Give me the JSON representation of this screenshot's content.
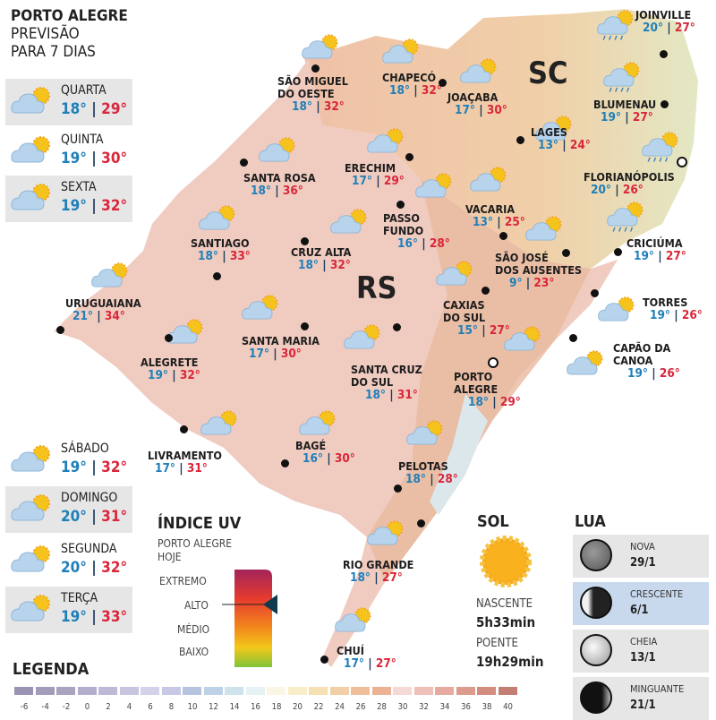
{
  "header": {
    "city": "PORTO ALEGRE",
    "line2": "PREVISÃO",
    "line3": "PARA 7 DIAS"
  },
  "days": [
    {
      "name": "QUARTA",
      "low": "18°",
      "high": "29°",
      "icon": "cloud-sun"
    },
    {
      "name": "QUINTA",
      "low": "19°",
      "high": "30°",
      "icon": "cloud-sun"
    },
    {
      "name": "SEXTA",
      "low": "19°",
      "high": "32°",
      "icon": "cloud-sun"
    },
    {
      "name": "SÁBADO",
      "low": "19°",
      "high": "32°",
      "icon": "cloud-sun"
    },
    {
      "name": "DOMINGO",
      "low": "20°",
      "high": "31°",
      "icon": "cloud-sun"
    },
    {
      "name": "SEGUNDA",
      "low": "20°",
      "high": "32°",
      "icon": "cloud-sun"
    },
    {
      "name": "TERÇA",
      "low": "19°",
      "high": "33°",
      "icon": "cloud-sun"
    }
  ],
  "regions": {
    "sc": "SC",
    "rs": "RS"
  },
  "cities": [
    {
      "name": "SÃO MIGUEL\nDO OESTE",
      "low": "18°",
      "high": "32°",
      "icon": "cloud-sun"
    },
    {
      "name": "CHAPECÓ",
      "low": "18°",
      "high": "32°",
      "icon": "cloud-sun"
    },
    {
      "name": "JOAÇABA",
      "low": "17°",
      "high": "30°",
      "icon": "cloud-sun"
    },
    {
      "name": "JOINVILLE",
      "low": "20°",
      "high": "27°",
      "icon": "cloud-sun-rain"
    },
    {
      "name": "BLUMENAU",
      "low": "19°",
      "high": "27°",
      "icon": "cloud-sun-rain"
    },
    {
      "name": "LAGES",
      "low": "13°",
      "high": "24°",
      "icon": "cloud-sun"
    },
    {
      "name": "FLORIANÓPOLIS",
      "low": "20°",
      "high": "26°",
      "icon": "cloud-sun-rain"
    },
    {
      "name": "ERECHIM",
      "low": "17°",
      "high": "29°",
      "icon": "cloud-sun"
    },
    {
      "name": "SANTA ROSA",
      "low": "18°",
      "high": "36°",
      "icon": "cloud-sun"
    },
    {
      "name": "VACARIA",
      "low": "13°",
      "high": "25°",
      "icon": "cloud-sun"
    },
    {
      "name": "PASSO\nFUNDO",
      "low": "16°",
      "high": "28°",
      "icon": "cloud-sun"
    },
    {
      "name": "CRICIÚMA",
      "low": "19°",
      "high": "27°",
      "icon": "cloud-sun-rain"
    },
    {
      "name": "SANTIAGO",
      "low": "18°",
      "high": "33°",
      "icon": "cloud-sun"
    },
    {
      "name": "CRUZ ALTA",
      "low": "18°",
      "high": "32°",
      "icon": "cloud-sun"
    },
    {
      "name": "SÃO JOSÉ\nDOS AUSENTES",
      "low": "9°",
      "high": "23°",
      "icon": "cloud-sun"
    },
    {
      "name": "URUGUAIANA",
      "low": "21°",
      "high": "34°",
      "icon": "cloud-sun"
    },
    {
      "name": "TORRES",
      "low": "19°",
      "high": "26°",
      "icon": "cloud-sun"
    },
    {
      "name": "CAXIAS\nDO SUL",
      "low": "15°",
      "high": "27°",
      "icon": "cloud-sun"
    },
    {
      "name": "SANTA MARIA",
      "low": "17°",
      "high": "30°",
      "icon": "cloud-sun"
    },
    {
      "name": "ALEGRETE",
      "low": "19°",
      "high": "32°",
      "icon": "cloud-sun"
    },
    {
      "name": "CAPÃO DA\nCANOA",
      "low": "19°",
      "high": "26°",
      "icon": "cloud-sun"
    },
    {
      "name": "SANTA CRUZ\nDO SUL",
      "low": "18°",
      "high": "31°",
      "icon": "cloud-sun"
    },
    {
      "name": "PORTO\nALEGRE",
      "low": "18°",
      "high": "29°",
      "icon": "cloud-sun"
    },
    {
      "name": "LIVRAMENTO",
      "low": "17°",
      "high": "31°",
      "icon": "cloud-sun"
    },
    {
      "name": "BAGÉ",
      "low": "16°",
      "high": "30°",
      "icon": "cloud-sun"
    },
    {
      "name": "PELOTAS",
      "low": "18°",
      "high": "28°",
      "icon": "cloud-sun"
    },
    {
      "name": "RIO GRANDE",
      "low": "18°",
      "high": "27°",
      "icon": "cloud-sun"
    },
    {
      "name": "CHUÍ",
      "low": "17°",
      "high": "27°",
      "icon": "cloud-sun"
    }
  ],
  "uv": {
    "title": "ÍNDICE UV",
    "subtitle1": "PORTO ALEGRE",
    "subtitle2": "HOJE",
    "levels": [
      "EXTREMO",
      "ALTO",
      "MÉDIO",
      "BAIXO"
    ],
    "current": "ALTO"
  },
  "sun": {
    "title": "SOL",
    "rise_label": "NASCENTE",
    "rise": "5h33min",
    "set_label": "POENTE",
    "set": "19h29min"
  },
  "moon": {
    "title": "LUA",
    "phases": [
      {
        "name": "NOVA",
        "date": "29/1",
        "selected": false
      },
      {
        "name": "CRESCENTE",
        "date": "6/1",
        "selected": true
      },
      {
        "name": "CHEIA",
        "date": "13/1",
        "selected": false
      },
      {
        "name": "MINGUANTE",
        "date": "21/1",
        "selected": false
      }
    ]
  },
  "legend": {
    "title": "LEGENDA",
    "ticks": [
      "-6",
      "-4",
      "-2",
      "0",
      "2",
      "4",
      "6",
      "8",
      "10",
      "12",
      "14",
      "16",
      "18",
      "20",
      "22",
      "24",
      "26",
      "28",
      "30",
      "32",
      "34",
      "36",
      "38",
      "40"
    ],
    "colors": [
      "#9b93b3",
      "#a39cba",
      "#aaa4c0",
      "#b3aecb",
      "#bdb9d6",
      "#c7c5e0",
      "#d3d2ea",
      "#c6c9e4",
      "#b6c3df",
      "#bdd2e6",
      "#cfe3ec",
      "#e6f2f4",
      "#fbf6e4",
      "#f8efc8",
      "#f6dfb0",
      "#f2cfa6",
      "#efbf9c",
      "#ebb294",
      "#f5d9d6",
      "#efc0b8",
      "#e6aa9e",
      "#dc9b8c",
      "#d28d80",
      "#c47e74"
    ]
  }
}
